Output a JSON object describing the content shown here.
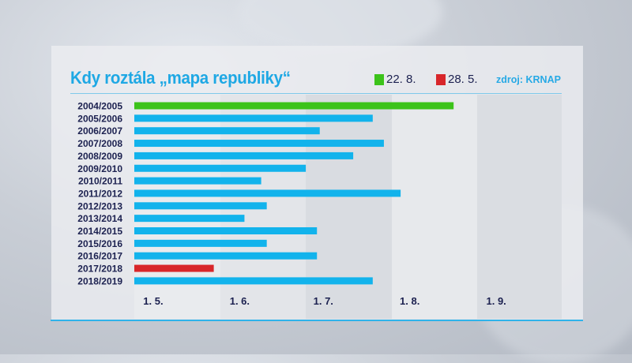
{
  "title": "Kdy roztála „mapa republiky“",
  "legend": [
    {
      "label": "22. 8.",
      "color": "#3cc31a"
    },
    {
      "label": "28. 5.",
      "color": "#d8262a"
    }
  ],
  "source": "zdroj: KRNAP",
  "colors": {
    "default_bar": "#12b3ec",
    "text": "#1c2150",
    "accent": "#1ea8e4"
  },
  "chart_data": {
    "type": "bar",
    "orientation": "horizontal",
    "title": "Kdy roztála „mapa republiky“",
    "xlabel": "",
    "ylabel": "",
    "x_ticks": [
      "1. 5.",
      "1. 6.",
      "1. 7.",
      "1. 8.",
      "1. 9."
    ],
    "x_tick_dates": [
      "1.5.",
      "1.6.",
      "1.7.",
      "1.8.",
      "1.9."
    ],
    "xlim": [
      "1.5.",
      "30.9."
    ],
    "grid": "alternating vertical month bands",
    "legend_position": "top-right",
    "categories": [
      "2004/2005",
      "2005/2006",
      "2006/2007",
      "2007/2008",
      "2008/2009",
      "2009/2010",
      "2010/2011",
      "2011/2012",
      "2012/2013",
      "2013/2014",
      "2014/2015",
      "2015/2016",
      "2016/2017",
      "2017/2018",
      "2018/2019"
    ],
    "values": [
      "22.8.",
      "24.7.",
      "5.7.",
      "28.7.",
      "17.7.",
      "30.6.",
      "14.6.",
      "3.8.",
      "16.6.",
      "8.6.",
      "4.7.",
      "16.6.",
      "4.7.",
      "28.5.",
      "24.7."
    ],
    "highlight": {
      "2004/2005": "#3cc31a",
      "2017/2018": "#d8262a"
    }
  }
}
